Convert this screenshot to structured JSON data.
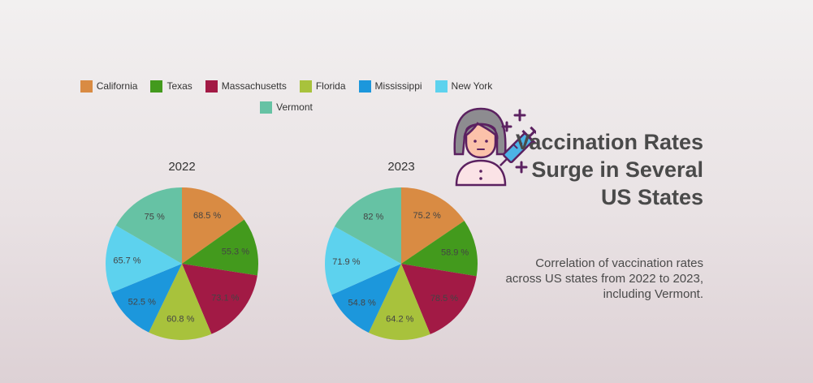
{
  "title": "Vaccination Rates Surge in Several US States",
  "subtitle": "Correlation of vaccination rates across US states from 2022 to 2023, including Vermont.",
  "chart_data": [
    {
      "type": "pie",
      "title": "2022",
      "categories": [
        "California",
        "Texas",
        "Massachusetts",
        "Florida",
        "Mississippi",
        "New York",
        "Vermont"
      ],
      "values": [
        68.5,
        55.3,
        73.1,
        60.8,
        52.5,
        65.7,
        75
      ],
      "labels": [
        "68.5 %",
        "55.3 %",
        "73.1 %",
        "60.8 %",
        "52.5 %",
        "65.7 %",
        "75 %"
      ]
    },
    {
      "type": "pie",
      "title": "2023",
      "categories": [
        "California",
        "Texas",
        "Massachusetts",
        "Florida",
        "Mississippi",
        "New York",
        "Vermont"
      ],
      "values": [
        75.2,
        58.9,
        78.5,
        64.2,
        54.8,
        71.9,
        82
      ],
      "labels": [
        "75.2 %",
        "58.9 %",
        "78.5 %",
        "64.2 %",
        "54.8 %",
        "71.9 %",
        "82 %"
      ]
    }
  ],
  "legend": {
    "placement": "top",
    "items": [
      {
        "label": "California",
        "color": "#d98b43"
      },
      {
        "label": "Texas",
        "color": "#439a1d"
      },
      {
        "label": "Massachusetts",
        "color": "#a21a45"
      },
      {
        "label": "Florida",
        "color": "#a8c23c"
      },
      {
        "label": "Mississippi",
        "color": "#1c97dc"
      },
      {
        "label": "New York",
        "color": "#5dd2ee"
      },
      {
        "label": "Vermont",
        "color": "#66c2a4"
      }
    ]
  },
  "icon": "nurse-syringe-icon"
}
